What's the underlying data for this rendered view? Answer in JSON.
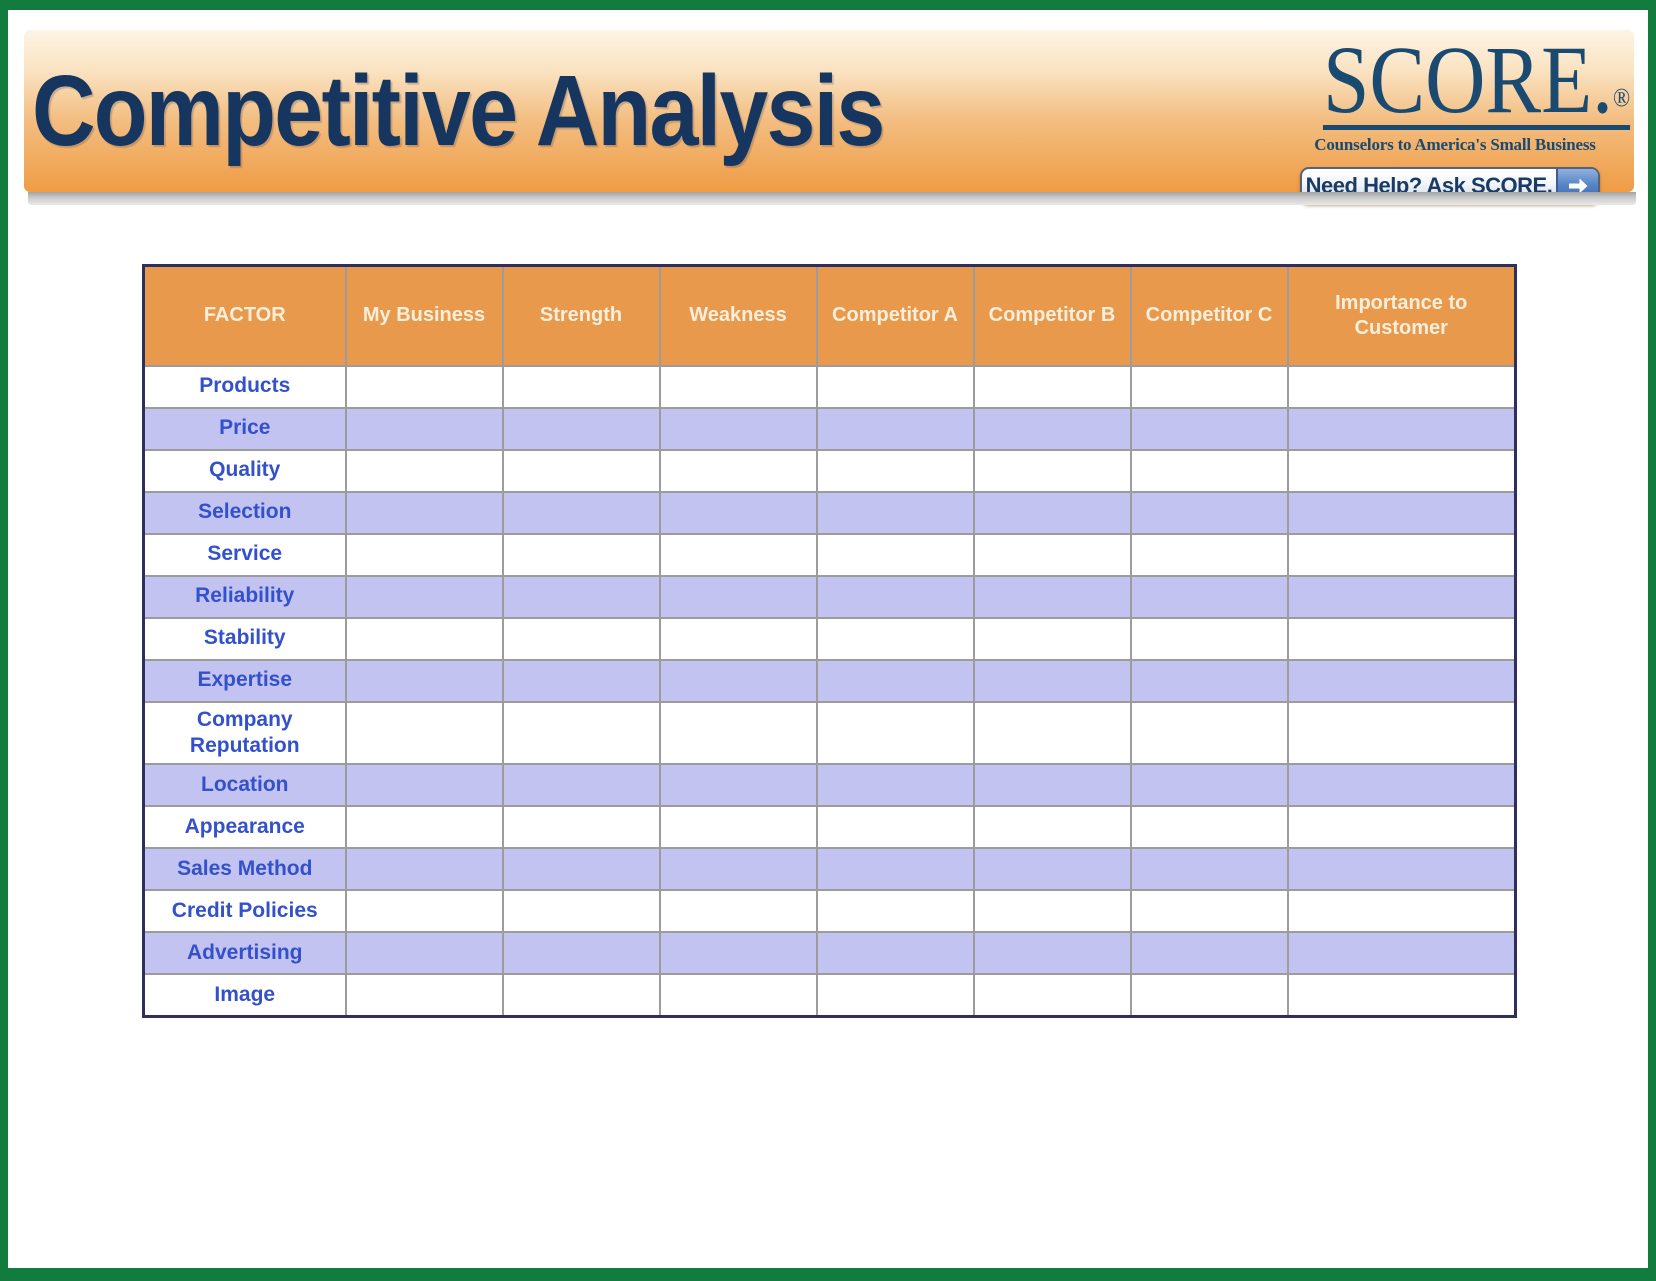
{
  "banner": {
    "title": "Competitive Analysis",
    "logo": {
      "wordmark": "SCORE.",
      "registered": "®",
      "tagline": "Counselors to America's Small Business"
    },
    "help_button": {
      "label": "Need Help? Ask SCORE.",
      "icon": "arrow-right-icon"
    }
  },
  "table": {
    "columns": [
      "FACTOR",
      "My Business",
      "Strength",
      "Weakness",
      "Competitor A",
      "Competitor B",
      "Competitor C",
      "Importance to Customer"
    ],
    "rows": [
      {
        "factor": "Products",
        "values": [
          "",
          "",
          "",
          "",
          "",
          "",
          ""
        ]
      },
      {
        "factor": "Price",
        "values": [
          "",
          "",
          "",
          "",
          "",
          "",
          ""
        ]
      },
      {
        "factor": "Quality",
        "values": [
          "",
          "",
          "",
          "",
          "",
          "",
          ""
        ]
      },
      {
        "factor": "Selection",
        "values": [
          "",
          "",
          "",
          "",
          "",
          "",
          ""
        ]
      },
      {
        "factor": "Service",
        "values": [
          "",
          "",
          "",
          "",
          "",
          "",
          ""
        ]
      },
      {
        "factor": "Reliability",
        "values": [
          "",
          "",
          "",
          "",
          "",
          "",
          ""
        ]
      },
      {
        "factor": "Stability",
        "values": [
          "",
          "",
          "",
          "",
          "",
          "",
          ""
        ]
      },
      {
        "factor": "Expertise",
        "values": [
          "",
          "",
          "",
          "",
          "",
          "",
          ""
        ]
      },
      {
        "factor": "Company Reputation",
        "values": [
          "",
          "",
          "",
          "",
          "",
          "",
          ""
        ]
      },
      {
        "factor": "Location",
        "values": [
          "",
          "",
          "",
          "",
          "",
          "",
          ""
        ]
      },
      {
        "factor": "Appearance",
        "values": [
          "",
          "",
          "",
          "",
          "",
          "",
          ""
        ]
      },
      {
        "factor": "Sales Method",
        "values": [
          "",
          "",
          "",
          "",
          "",
          "",
          ""
        ]
      },
      {
        "factor": "Credit Policies",
        "values": [
          "",
          "",
          "",
          "",
          "",
          "",
          ""
        ]
      },
      {
        "factor": "Advertising",
        "values": [
          "",
          "",
          "",
          "",
          "",
          "",
          ""
        ]
      },
      {
        "factor": "Image",
        "values": [
          "",
          "",
          "",
          "",
          "",
          "",
          ""
        ]
      }
    ]
  },
  "colors": {
    "page_border_green": "#127B3E",
    "banner_top": "#FDF4E5",
    "banner_bottom": "#EF9C44",
    "header_orange": "#E9994C",
    "header_text_cream": "#F7EFDB",
    "row_lavender": "#C3C3F2",
    "row_white": "#FFFFFF",
    "title_navy": "#16365F",
    "logo_navy": "#1B4A70",
    "factor_blue": "#3351CA",
    "table_border_navy": "#2F2F5E",
    "grid_gray": "#9C9C9C",
    "button_arrow_blue": "#3A69B2"
  }
}
